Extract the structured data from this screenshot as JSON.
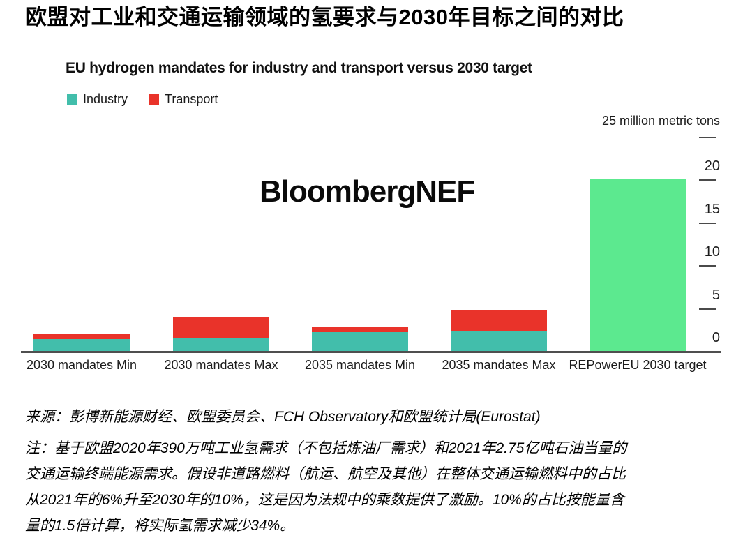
{
  "page": {
    "title_zh": "欧盟对工业和交通运输领域的氢要求与2030年目标之间的对比"
  },
  "chart": {
    "watermark": "BloombergNEF"
  },
  "chart_data": {
    "type": "bar",
    "stacked": true,
    "title": "EU hydrogen mandates for industry and transport versus 2030 target",
    "ylabel": "25 million metric tons",
    "xlabel": "",
    "ylim": [
      0,
      25
    ],
    "yticks": [
      0,
      5,
      10,
      15,
      20
    ],
    "axis_side": "right",
    "grid": false,
    "legend_position": "top-left",
    "categories": [
      "2030 mandates Min",
      "2030 mandates Max",
      "2035 mandates Min",
      "2035 mandates Max",
      "REPowerEU 2030 target"
    ],
    "series": [
      {
        "name": "Industry",
        "color": "#42BEAB",
        "values": [
          1.4,
          1.5,
          2.2,
          2.3,
          0
        ]
      },
      {
        "name": "Transport",
        "color": "#E9332A",
        "values": [
          0.6,
          2.5,
          0.6,
          2.5,
          0
        ]
      },
      {
        "name": "REPowerEU 2030 target",
        "color": "#5CE98F",
        "values": [
          0,
          0,
          0,
          0,
          20
        ]
      }
    ]
  },
  "footer": {
    "source": "来源：彭博新能源财经、欧盟委员会、FCH Observatory和欧盟统计局(Eurostat)",
    "notes": [
      "注：基于欧盟2020年390万吨工业氢需求（不包括炼油厂需求）和2021年2.75亿吨石油当量的",
      "交通运输终端能源需求。假设非道路燃料（航运、航空及其他）在整体交通运输燃料中的占比",
      "从2021年的6%升至2030年的10%，这是因为法规中的乘数提供了激励。10%的占比按能量含",
      "量的1.5倍计算，将实际氢需求减少34%。"
    ]
  }
}
